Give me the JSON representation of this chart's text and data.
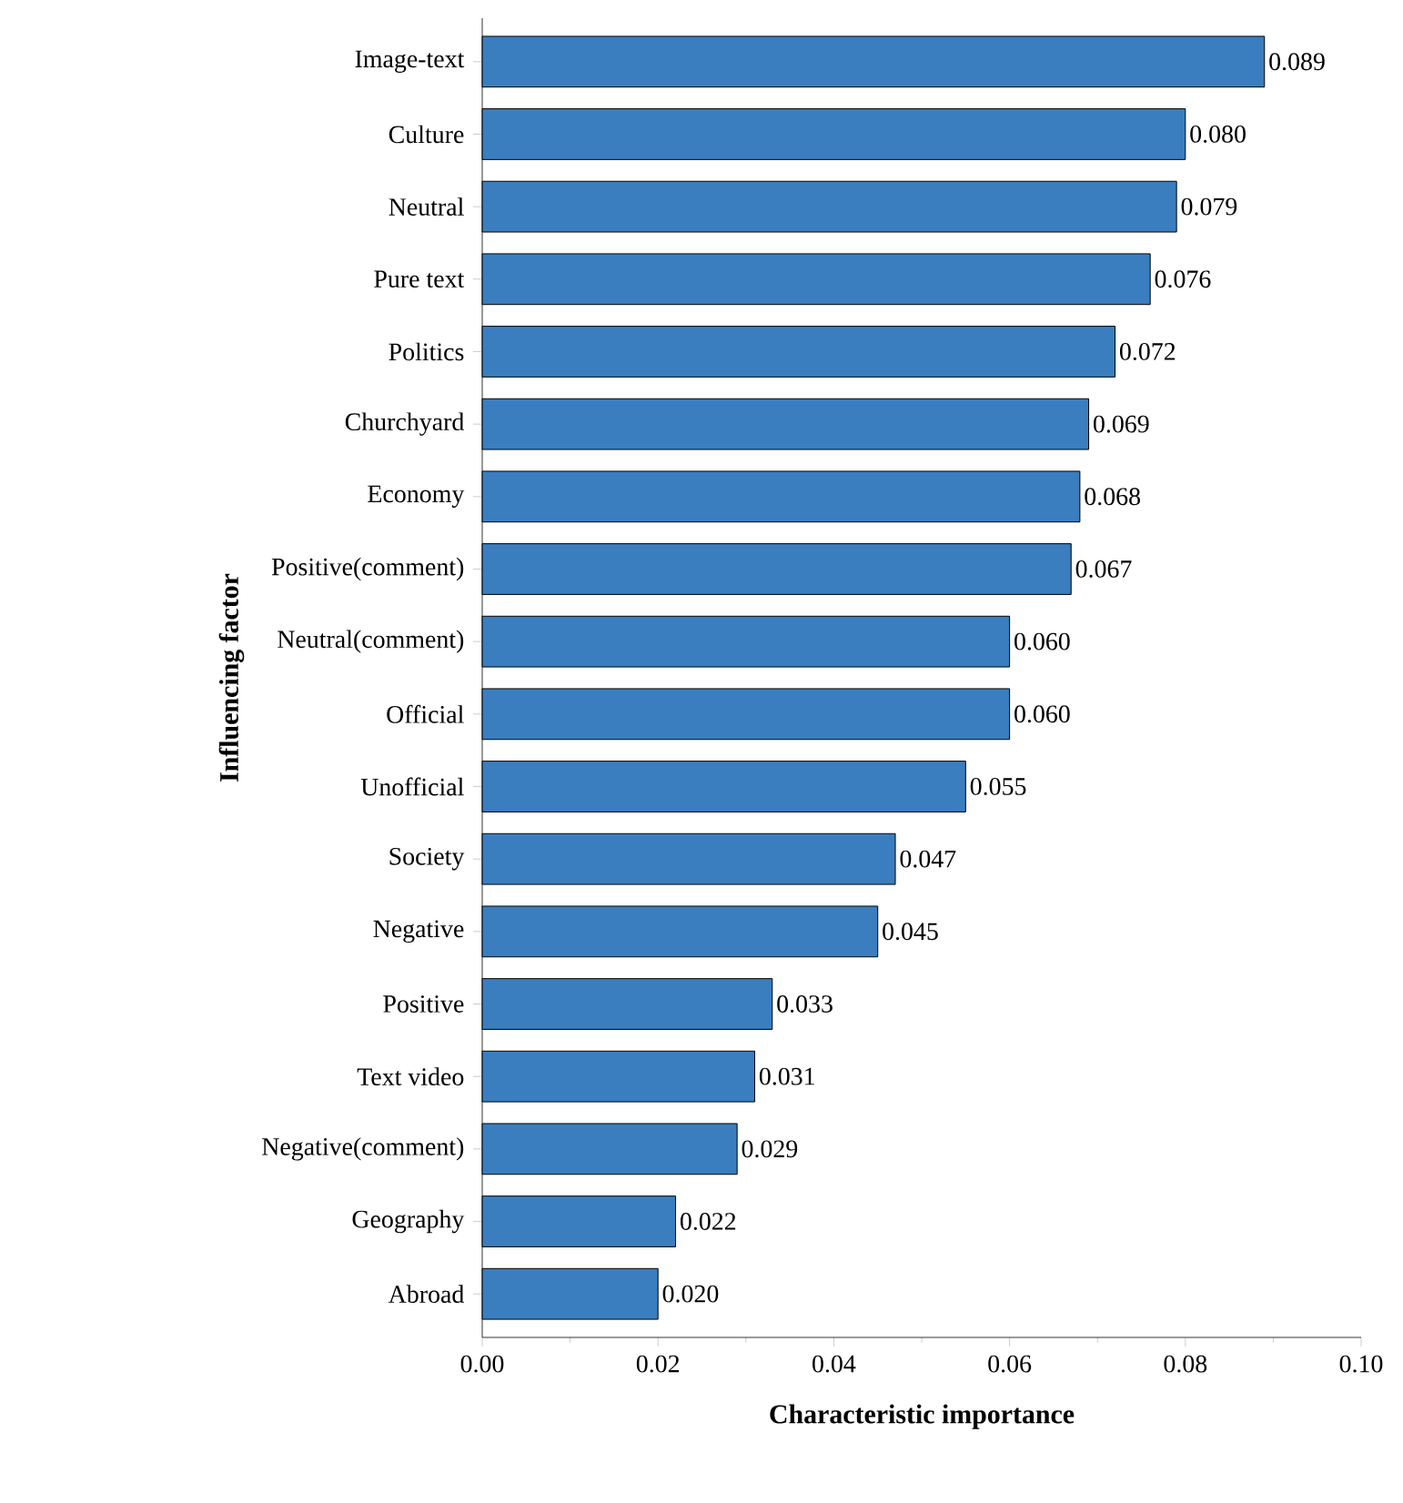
{
  "chart_data": {
    "type": "bar",
    "orientation": "horizontal",
    "xlabel": "Characteristic importance",
    "ylabel": "Influencing factor",
    "categories": [
      "Image-text",
      "Culture",
      "Neutral",
      "Pure text",
      "Politics",
      "Churchyard",
      "Economy",
      "Positive(comment)",
      "Neutral(comment)",
      "Official",
      "Unofficial",
      "Society",
      "Negative",
      "Positive",
      "Text video",
      "Negative(comment)",
      "Geography",
      "Abroad"
    ],
    "values": [
      0.089,
      0.08,
      0.079,
      0.076,
      0.072,
      0.069,
      0.068,
      0.067,
      0.06,
      0.06,
      0.055,
      0.047,
      0.045,
      0.033,
      0.031,
      0.029,
      0.022,
      0.02
    ],
    "value_labels": [
      "0.089",
      "0.080",
      "0.079",
      "0.076",
      "0.072",
      "0.069",
      "0.068",
      "0.067",
      "0.060",
      "0.060",
      "0.055",
      "0.047",
      "0.045",
      "0.033",
      "0.031",
      "0.029",
      "0.022",
      "0.020"
    ],
    "color": "#3a7ebf",
    "xlim": [
      0,
      0.1
    ],
    "xticks": [
      {
        "value": 0,
        "label": "0.00"
      },
      {
        "value": 0.02,
        "label": "0.02"
      },
      {
        "value": 0.04,
        "label": "0.04"
      },
      {
        "value": 0.06,
        "label": "0.06"
      },
      {
        "value": 0.08,
        "label": "0.08"
      },
      {
        "value": 0.1,
        "label": "0.10"
      }
    ]
  }
}
